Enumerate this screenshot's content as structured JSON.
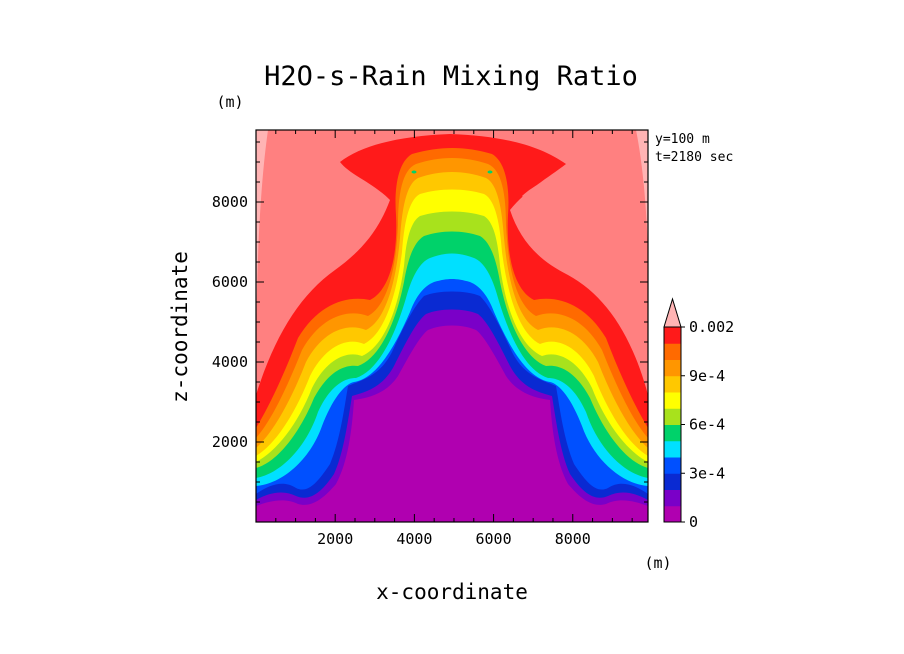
{
  "chart_data": {
    "type": "filled-contour",
    "title": "H2O-s-Rain Mixing Ratio",
    "xlabel": "x-coordinate",
    "ylabel": "z-coordinate",
    "xunit": "(m)",
    "yunit": "(m)",
    "xlim": [
      0,
      9900
    ],
    "ylim": [
      0,
      9800
    ],
    "xticks": [
      2000,
      4000,
      6000,
      8000
    ],
    "yticks": [
      2000,
      4000,
      6000,
      8000
    ],
    "info": [
      "y=100 m",
      "t=2180 sec"
    ],
    "colorbar": {
      "levels": [
        0,
        0.0001,
        0.0002,
        0.0003,
        0.0004,
        0.0005,
        0.0006,
        0.0007,
        0.0008,
        0.0009,
        0.001,
        0.0015,
        0.002
      ],
      "labels": [
        {
          "value": 0,
          "text": "0"
        },
        {
          "value": 0.0003,
          "text": "3e-4"
        },
        {
          "value": 0.0006,
          "text": "6e-4"
        },
        {
          "value": 0.0009,
          "text": "9e-4"
        },
        {
          "value": 0.002,
          "text": "0.002"
        }
      ],
      "colors": [
        "#b000b0",
        "#7a00c8",
        "#0a2ad2",
        "#0050ff",
        "#00e0ff",
        "#00d26a",
        "#a8e21c",
        "#ffff00",
        "#ffc800",
        "#ff9600",
        "#ff6a00",
        "#ff1a1a",
        "#ff8080",
        "#ffb4b4"
      ],
      "extend": "max"
    }
  }
}
